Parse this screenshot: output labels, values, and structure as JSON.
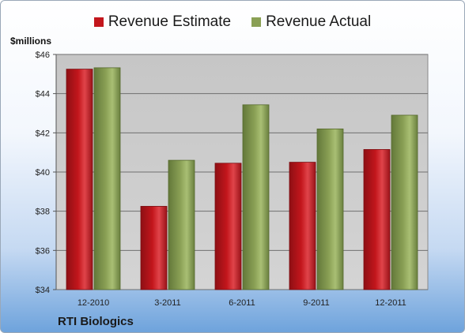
{
  "legend": {
    "estimate_label": "Revenue Estimate",
    "actual_label": "Revenue Actual"
  },
  "unit_label": "$millions",
  "company": "RTI Biologics",
  "colors": {
    "estimate": "#c3161c",
    "actual": "#8aa055",
    "plot_bg": "#c6c6c6"
  },
  "chart_data": {
    "type": "bar",
    "categories": [
      "12-2010",
      "3-2011",
      "6-2011",
      "9-2011",
      "12-2011"
    ],
    "series": [
      {
        "name": "Revenue Estimate",
        "values": [
          45.25,
          38.25,
          40.45,
          40.5,
          41.15
        ]
      },
      {
        "name": "Revenue Actual",
        "values": [
          45.32,
          40.6,
          43.43,
          42.2,
          42.9
        ]
      }
    ],
    "ylim": [
      34,
      46
    ],
    "yticks": [
      "$34",
      "$36",
      "$38",
      "$40",
      "$42",
      "$44",
      "$46"
    ],
    "ylabel": "$millions",
    "grid": true,
    "legend_position": "top"
  }
}
